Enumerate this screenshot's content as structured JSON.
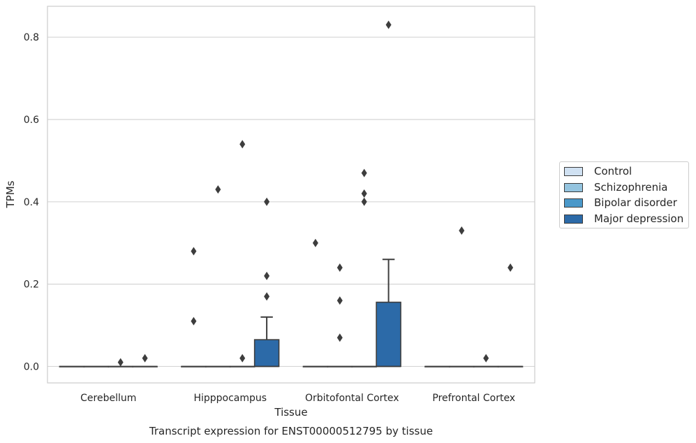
{
  "chart_data": {
    "type": "box",
    "title": "Transcript expression for ENST00000512795 by tissue",
    "xlabel": "Tissue",
    "ylabel": "TPMs",
    "categories": [
      "Cerebellum",
      "Hipppocampus",
      "Orbitofontal Cortex",
      "Prefrontal Cortex"
    ],
    "yticks": [
      "0.0",
      "0.2",
      "0.4",
      "0.6",
      "0.8"
    ],
    "ylim": [
      -0.04,
      0.875
    ],
    "grid": true,
    "legend_position": "right",
    "series": [
      {
        "name": "Control",
        "color": "#d0e1f2",
        "boxes": [
          {
            "q1": 0,
            "median": 0,
            "q3": 0,
            "whisker_low": 0,
            "whisker_high": 0,
            "outliers": []
          },
          {
            "q1": 0,
            "median": 0,
            "q3": 0,
            "whisker_low": 0,
            "whisker_high": 0,
            "outliers": [
              0.11,
              0.28
            ]
          },
          {
            "q1": 0,
            "median": 0,
            "q3": 0,
            "whisker_low": 0,
            "whisker_high": 0,
            "outliers": [
              0.3
            ]
          },
          {
            "q1": 0,
            "median": 0,
            "q3": 0,
            "whisker_low": 0,
            "whisker_high": 0,
            "outliers": []
          }
        ]
      },
      {
        "name": "Schizophrenia",
        "color": "#94c4df",
        "boxes": [
          {
            "q1": 0,
            "median": 0,
            "q3": 0,
            "whisker_low": 0,
            "whisker_high": 0,
            "outliers": []
          },
          {
            "q1": 0,
            "median": 0,
            "q3": 0,
            "whisker_low": 0,
            "whisker_high": 0,
            "outliers": [
              0.43
            ]
          },
          {
            "q1": 0,
            "median": 0,
            "q3": 0,
            "whisker_low": 0,
            "whisker_high": 0,
            "outliers": [
              0.07,
              0.16,
              0.24
            ]
          },
          {
            "q1": 0,
            "median": 0,
            "q3": 0,
            "whisker_low": 0,
            "whisker_high": 0,
            "outliers": [
              0.33
            ]
          }
        ]
      },
      {
        "name": "Bipolar disorder",
        "color": "#4a98c9",
        "boxes": [
          {
            "q1": 0,
            "median": 0,
            "q3": 0,
            "whisker_low": 0,
            "whisker_high": 0,
            "outliers": [
              0.01
            ]
          },
          {
            "q1": 0,
            "median": 0,
            "q3": 0,
            "whisker_low": 0,
            "whisker_high": 0,
            "outliers": [
              0.02,
              0.54
            ]
          },
          {
            "q1": 0,
            "median": 0,
            "q3": 0,
            "whisker_low": 0,
            "whisker_high": 0,
            "outliers": [
              0.4,
              0.42,
              0.47
            ]
          },
          {
            "q1": 0,
            "median": 0,
            "q3": 0,
            "whisker_low": 0,
            "whisker_high": 0,
            "outliers": [
              0.02
            ]
          }
        ]
      },
      {
        "name": "Major depression",
        "color": "#2c6aa8",
        "boxes": [
          {
            "q1": 0,
            "median": 0,
            "q3": 0,
            "whisker_low": 0,
            "whisker_high": 0,
            "outliers": [
              0.02
            ]
          },
          {
            "q1": 0,
            "median": 0,
            "q3": 0.065,
            "whisker_low": 0,
            "whisker_high": 0.12,
            "outliers": [
              0.17,
              0.22,
              0.4
            ]
          },
          {
            "q1": 0,
            "median": 0,
            "q3": 0.156,
            "whisker_low": 0,
            "whisker_high": 0.26,
            "outliers": [
              0.83
            ]
          },
          {
            "q1": 0,
            "median": 0,
            "q3": 0,
            "whisker_low": 0,
            "whisker_high": 0,
            "outliers": [
              0.24
            ]
          }
        ]
      }
    ]
  }
}
